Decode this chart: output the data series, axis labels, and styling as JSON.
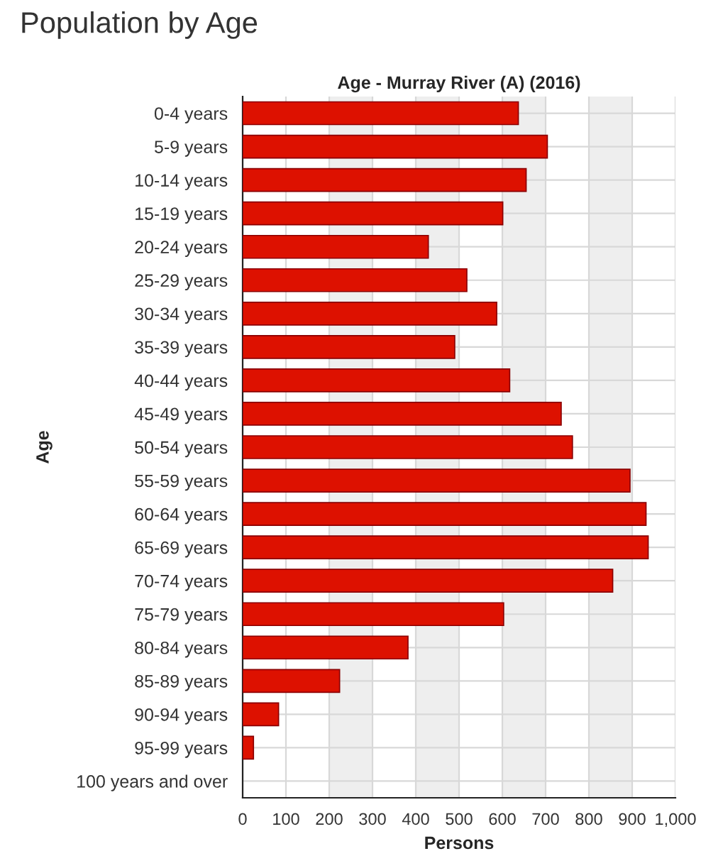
{
  "chart_data": {
    "type": "bar",
    "orientation": "horizontal",
    "title": "Age - Murray River (A) (2016)",
    "annotations": [
      "Population by Age"
    ],
    "xlabel": "Persons",
    "ylabel": "Age",
    "categories": [
      "0-4 years",
      "5-9 years",
      "10-14 years",
      "15-19 years",
      "20-24 years",
      "25-29 years",
      "30-34 years",
      "35-39 years",
      "40-44 years",
      "45-49 years",
      "50-54 years",
      "55-59 years",
      "60-64 years",
      "65-69 years",
      "70-74 years",
      "75-79 years",
      "80-84 years",
      "85-89 years",
      "90-94 years",
      "95-99 years",
      "100 years and over"
    ],
    "values": [
      637,
      704,
      655,
      601,
      429,
      518,
      587,
      490,
      617,
      736,
      762,
      895,
      932,
      937,
      855,
      603,
      382,
      224,
      83,
      25,
      0
    ],
    "color": "#dd1100",
    "xlim": [
      0,
      1000
    ],
    "xticks": [
      0,
      100,
      200,
      300,
      400,
      500,
      600,
      700,
      800,
      900,
      {
        "value": 1000,
        "label": "1,000"
      }
    ],
    "bands": [
      {
        "axis": "x",
        "from": 200,
        "to": 300,
        "color": "#eeeeee"
      },
      {
        "axis": "x",
        "from": 400,
        "to": 500,
        "color": "#eeeeee"
      },
      {
        "axis": "x",
        "from": 600,
        "to": 700,
        "color": "#eeeeee"
      },
      {
        "axis": "x",
        "from": 800,
        "to": 900,
        "color": "#eeeeee"
      }
    ],
    "grid": true,
    "legend": false
  }
}
